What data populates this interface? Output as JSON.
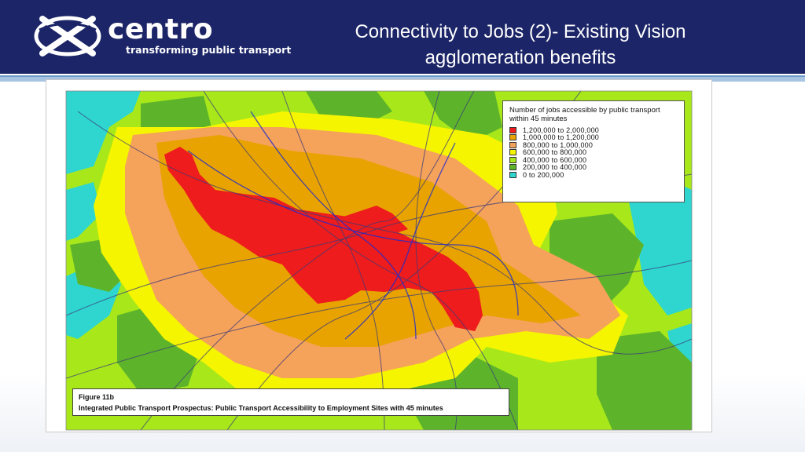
{
  "header": {
    "brand": "centro",
    "tagline": "transforming public transport",
    "title_line1": "Connectivity to Jobs (2)- Existing Vision",
    "title_line2": "agglomeration benefits",
    "background_color": "#1c2567"
  },
  "map": {
    "legend": {
      "title": "Number of jobs accessible by public transport within 45 minutes",
      "items": [
        {
          "label": "1,200,000 to 2,000,000",
          "color": "#ee1c1c"
        },
        {
          "label": "1,000,000 to 1,200,000",
          "color": "#e8a300"
        },
        {
          "label": "800,000 to 1,000,000",
          "color": "#f5a25a"
        },
        {
          "label": "600,000 to 800,000",
          "color": "#f5f500"
        },
        {
          "label": "400,000 to 600,000",
          "color": "#a8e81a"
        },
        {
          "label": "200,000 to 400,000",
          "color": "#5db42a"
        },
        {
          "label": "0 to 200,000",
          "color": "#2ed6cf"
        }
      ]
    },
    "caption": {
      "figure": "Figure 11b",
      "text": "Integrated Public Transport Prospectus: Public Transport Accessibility to Employment Sites with 45 minutes"
    }
  }
}
